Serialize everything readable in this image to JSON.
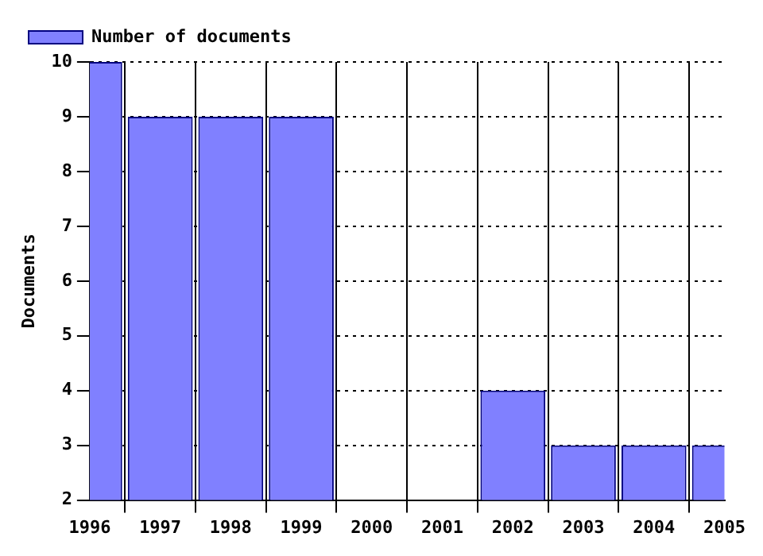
{
  "chart_data": {
    "type": "bar",
    "ylabel": "Documents",
    "x": [
      1996,
      1997,
      1998,
      1999,
      2000,
      2001,
      2002,
      2003,
      2004,
      2005
    ],
    "series": [
      {
        "name": "Number of documents",
        "color": "#8080ff",
        "values": [
          10,
          9,
          9,
          9,
          null,
          null,
          4,
          3,
          3,
          3
        ]
      }
    ],
    "xlim": [
      1996,
      2005
    ],
    "xticks": [
      1996,
      1997,
      1998,
      1999,
      2000,
      2001,
      2002,
      2003,
      2004,
      2005
    ],
    "ylim": [
      2,
      10
    ],
    "yticks": [
      2,
      3,
      4,
      5,
      6,
      7,
      8,
      9,
      10
    ],
    "grid": true,
    "legend": "top left"
  }
}
